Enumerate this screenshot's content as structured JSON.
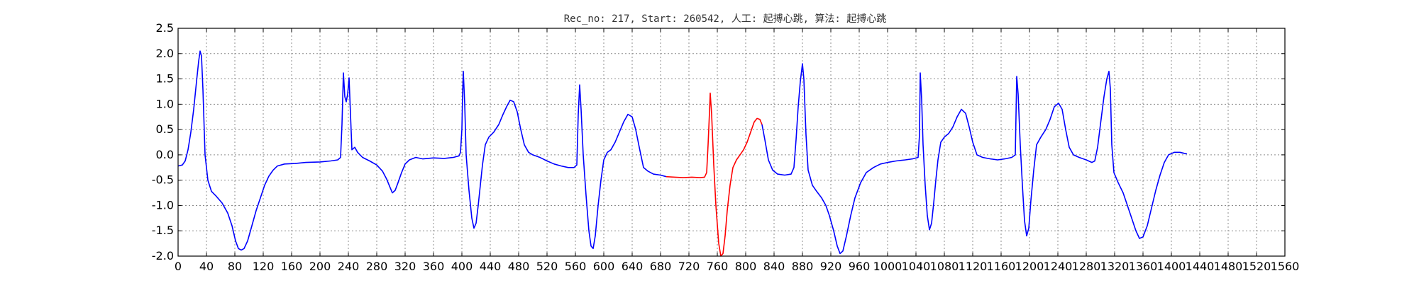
{
  "chart_data": {
    "type": "line",
    "title": "Rec_no: 217, Start: 260542, 人工: 起搏心跳, 算法: 起搏心跳",
    "xlabel": "",
    "ylabel": "",
    "xlim": [
      0,
      1560
    ],
    "ylim": [
      -2.0,
      2.5
    ],
    "yticks": [
      -2.0,
      -1.5,
      -1.0,
      -0.5,
      0.0,
      0.5,
      1.0,
      1.5,
      2.0,
      2.5
    ],
    "ytick_labels": [
      "-2.0",
      "-1.5",
      "-1.0",
      "-0.5",
      "0.0",
      "0.5",
      "1.0",
      "1.5",
      "2.0",
      "2.5"
    ],
    "xticks": [
      0,
      40,
      80,
      120,
      160,
      200,
      240,
      280,
      320,
      360,
      400,
      440,
      480,
      520,
      560,
      600,
      640,
      680,
      720,
      760,
      800,
      840,
      880,
      920,
      960,
      1000,
      1040,
      1080,
      1120,
      1160,
      1200,
      1240,
      1280,
      1320,
      1360,
      1400,
      1440,
      1480,
      1520,
      1560
    ],
    "xtick_labels": [
      "0",
      "40",
      "80",
      "120",
      "160",
      "200",
      "240",
      "280",
      "320",
      "360",
      "400",
      "440",
      "480",
      "520",
      "560",
      "600",
      "640",
      "680",
      "720",
      "760",
      "800",
      "840",
      "880",
      "920",
      "960",
      "1000",
      "1040",
      "1080",
      "1120",
      "1160",
      "1200",
      "1240",
      "1280",
      "1320",
      "1360",
      "1400",
      "1440",
      "1480",
      "1520",
      "1560"
    ],
    "grid": true,
    "series": [
      {
        "color": "#0000ff",
        "points": [
          [
            0,
            -0.22
          ],
          [
            6,
            -0.2
          ],
          [
            10,
            -0.12
          ],
          [
            14,
            0.1
          ],
          [
            18,
            0.45
          ],
          [
            22,
            0.9
          ],
          [
            26,
            1.45
          ],
          [
            29,
            1.85
          ],
          [
            31,
            2.05
          ],
          [
            33,
            1.95
          ],
          [
            35,
            1.3
          ],
          [
            38,
            0.0
          ],
          [
            42,
            -0.5
          ],
          [
            47,
            -0.72
          ],
          [
            54,
            -0.82
          ],
          [
            62,
            -0.95
          ],
          [
            70,
            -1.15
          ],
          [
            76,
            -1.4
          ],
          [
            81,
            -1.7
          ],
          [
            85,
            -1.85
          ],
          [
            89,
            -1.88
          ],
          [
            93,
            -1.85
          ],
          [
            98,
            -1.7
          ],
          [
            104,
            -1.4
          ],
          [
            110,
            -1.1
          ],
          [
            116,
            -0.85
          ],
          [
            122,
            -0.6
          ],
          [
            128,
            -0.42
          ],
          [
            134,
            -0.3
          ],
          [
            140,
            -0.22
          ],
          [
            150,
            -0.18
          ],
          [
            165,
            -0.17
          ],
          [
            180,
            -0.15
          ],
          [
            200,
            -0.14
          ],
          [
            215,
            -0.12
          ],
          [
            225,
            -0.1
          ],
          [
            229,
            -0.05
          ],
          [
            231,
            0.6
          ],
          [
            233,
            1.62
          ],
          [
            235,
            1.15
          ],
          [
            237,
            1.05
          ],
          [
            239,
            1.2
          ],
          [
            241,
            1.52
          ],
          [
            243,
            0.8
          ],
          [
            245,
            0.1
          ],
          [
            249,
            0.15
          ],
          [
            253,
            0.05
          ],
          [
            260,
            -0.05
          ],
          [
            270,
            -0.12
          ],
          [
            280,
            -0.2
          ],
          [
            288,
            -0.32
          ],
          [
            294,
            -0.48
          ],
          [
            299,
            -0.65
          ],
          [
            302,
            -0.75
          ],
          [
            306,
            -0.7
          ],
          [
            310,
            -0.55
          ],
          [
            315,
            -0.35
          ],
          [
            320,
            -0.18
          ],
          [
            326,
            -0.1
          ],
          [
            335,
            -0.05
          ],
          [
            345,
            -0.08
          ],
          [
            360,
            -0.06
          ],
          [
            375,
            -0.07
          ],
          [
            388,
            -0.05
          ],
          [
            396,
            -0.02
          ],
          [
            398,
            0.05
          ],
          [
            400,
            0.5
          ],
          [
            401,
            1.2
          ],
          [
            402,
            1.65
          ],
          [
            404,
            1.0
          ],
          [
            406,
            0.0
          ],
          [
            410,
            -0.7
          ],
          [
            414,
            -1.25
          ],
          [
            417,
            -1.45
          ],
          [
            420,
            -1.35
          ],
          [
            423,
            -1.0
          ],
          [
            426,
            -0.6
          ],
          [
            429,
            -0.2
          ],
          [
            433,
            0.2
          ],
          [
            438,
            0.35
          ],
          [
            445,
            0.45
          ],
          [
            452,
            0.6
          ],
          [
            458,
            0.8
          ],
          [
            463,
            0.95
          ],
          [
            468,
            1.08
          ],
          [
            473,
            1.05
          ],
          [
            478,
            0.85
          ],
          [
            483,
            0.5
          ],
          [
            488,
            0.2
          ],
          [
            494,
            0.05
          ],
          [
            500,
            0.0
          ],
          [
            510,
            -0.05
          ],
          [
            520,
            -0.12
          ],
          [
            530,
            -0.18
          ],
          [
            540,
            -0.22
          ],
          [
            550,
            -0.25
          ],
          [
            558,
            -0.25
          ],
          [
            562,
            -0.2
          ],
          [
            564,
            0.8
          ],
          [
            566,
            1.38
          ],
          [
            568,
            0.9
          ],
          [
            571,
            0.0
          ],
          [
            575,
            -0.8
          ],
          [
            579,
            -1.5
          ],
          [
            582,
            -1.8
          ],
          [
            585,
            -1.85
          ],
          [
            588,
            -1.6
          ],
          [
            592,
            -1.0
          ],
          [
            596,
            -0.5
          ],
          [
            600,
            -0.1
          ],
          [
            605,
            0.05
          ],
          [
            610,
            0.1
          ],
          [
            616,
            0.25
          ],
          [
            622,
            0.45
          ],
          [
            628,
            0.65
          ],
          [
            634,
            0.8
          ],
          [
            640,
            0.75
          ],
          [
            645,
            0.5
          ],
          [
            650,
            0.15
          ],
          [
            656,
            -0.25
          ],
          [
            662,
            -0.32
          ],
          [
            670,
            -0.38
          ],
          [
            680,
            -0.4
          ],
          [
            688,
            -0.43
          ]
        ]
      },
      {
        "color": "#ff0000",
        "points": [
          [
            688,
            -0.43
          ],
          [
            700,
            -0.44
          ],
          [
            712,
            -0.45
          ],
          [
            724,
            -0.44
          ],
          [
            736,
            -0.45
          ],
          [
            742,
            -0.44
          ],
          [
            745,
            -0.35
          ],
          [
            747,
            0.2
          ],
          [
            749,
            0.85
          ],
          [
            750,
            1.22
          ],
          [
            752,
            0.8
          ],
          [
            755,
            -0.2
          ],
          [
            758,
            -1.0
          ],
          [
            762,
            -1.75
          ],
          [
            765,
            -2.0
          ],
          [
            768,
            -1.95
          ],
          [
            771,
            -1.6
          ],
          [
            774,
            -1.1
          ],
          [
            778,
            -0.6
          ],
          [
            782,
            -0.25
          ],
          [
            787,
            -0.1
          ],
          [
            792,
            0.0
          ],
          [
            797,
            0.1
          ],
          [
            802,
            0.25
          ],
          [
            807,
            0.45
          ],
          [
            812,
            0.65
          ],
          [
            816,
            0.72
          ],
          [
            820,
            0.7
          ],
          [
            823,
            0.6
          ]
        ]
      },
      {
        "color": "#0000ff",
        "points": [
          [
            823,
            0.6
          ],
          [
            827,
            0.3
          ],
          [
            832,
            -0.1
          ],
          [
            838,
            -0.3
          ],
          [
            845,
            -0.38
          ],
          [
            855,
            -0.4
          ],
          [
            864,
            -0.38
          ],
          [
            868,
            -0.25
          ],
          [
            871,
            0.3
          ],
          [
            874,
            0.95
          ],
          [
            877,
            1.45
          ],
          [
            880,
            1.8
          ],
          [
            882,
            1.5
          ],
          [
            885,
            0.4
          ],
          [
            888,
            -0.3
          ],
          [
            894,
            -0.6
          ],
          [
            900,
            -0.72
          ],
          [
            907,
            -0.85
          ],
          [
            913,
            -1.0
          ],
          [
            918,
            -1.2
          ],
          [
            924,
            -1.5
          ],
          [
            929,
            -1.8
          ],
          [
            933,
            -1.95
          ],
          [
            937,
            -1.9
          ],
          [
            942,
            -1.6
          ],
          [
            948,
            -1.2
          ],
          [
            954,
            -0.85
          ],
          [
            962,
            -0.55
          ],
          [
            970,
            -0.35
          ],
          [
            980,
            -0.25
          ],
          [
            990,
            -0.18
          ],
          [
            1000,
            -0.15
          ],
          [
            1012,
            -0.12
          ],
          [
            1025,
            -0.1
          ],
          [
            1035,
            -0.08
          ],
          [
            1043,
            -0.05
          ],
          [
            1045,
            0.4
          ],
          [
            1046,
            1.62
          ],
          [
            1048,
            1.1
          ],
          [
            1050,
            0.2
          ],
          [
            1053,
            -0.6
          ],
          [
            1056,
            -1.2
          ],
          [
            1059,
            -1.48
          ],
          [
            1062,
            -1.35
          ],
          [
            1065,
            -0.95
          ],
          [
            1068,
            -0.5
          ],
          [
            1071,
            -0.1
          ],
          [
            1075,
            0.25
          ],
          [
            1080,
            0.35
          ],
          [
            1086,
            0.42
          ],
          [
            1092,
            0.55
          ],
          [
            1098,
            0.75
          ],
          [
            1104,
            0.9
          ],
          [
            1110,
            0.82
          ],
          [
            1115,
            0.55
          ],
          [
            1120,
            0.25
          ],
          [
            1126,
            0.0
          ],
          [
            1134,
            -0.05
          ],
          [
            1145,
            -0.08
          ],
          [
            1155,
            -0.1
          ],
          [
            1165,
            -0.08
          ],
          [
            1175,
            -0.05
          ],
          [
            1180,
            0.0
          ],
          [
            1182,
            1.55
          ],
          [
            1184,
            1.2
          ],
          [
            1187,
            0.2
          ],
          [
            1190,
            -0.6
          ],
          [
            1193,
            -1.3
          ],
          [
            1196,
            -1.6
          ],
          [
            1199,
            -1.45
          ],
          [
            1202,
            -0.9
          ],
          [
            1206,
            -0.3
          ],
          [
            1210,
            0.2
          ],
          [
            1216,
            0.35
          ],
          [
            1223,
            0.5
          ],
          [
            1229,
            0.7
          ],
          [
            1235,
            0.95
          ],
          [
            1241,
            1.02
          ],
          [
            1246,
            0.9
          ],
          [
            1251,
            0.5
          ],
          [
            1256,
            0.15
          ],
          [
            1262,
            0.0
          ],
          [
            1270,
            -0.05
          ],
          [
            1280,
            -0.1
          ],
          [
            1288,
            -0.15
          ],
          [
            1292,
            -0.12
          ],
          [
            1296,
            0.15
          ],
          [
            1300,
            0.6
          ],
          [
            1305,
            1.15
          ],
          [
            1309,
            1.5
          ],
          [
            1312,
            1.65
          ],
          [
            1314,
            1.3
          ],
          [
            1316,
            0.2
          ],
          [
            1319,
            -0.35
          ],
          [
            1325,
            -0.55
          ],
          [
            1332,
            -0.75
          ],
          [
            1338,
            -1.0
          ],
          [
            1344,
            -1.25
          ],
          [
            1350,
            -1.5
          ],
          [
            1355,
            -1.65
          ],
          [
            1360,
            -1.62
          ],
          [
            1366,
            -1.4
          ],
          [
            1372,
            -1.05
          ],
          [
            1378,
            -0.7
          ],
          [
            1384,
            -0.4
          ],
          [
            1390,
            -0.15
          ],
          [
            1396,
            0.0
          ],
          [
            1404,
            0.05
          ],
          [
            1412,
            0.05
          ],
          [
            1418,
            0.03
          ],
          [
            1422,
            0.02
          ]
        ]
      }
    ]
  }
}
